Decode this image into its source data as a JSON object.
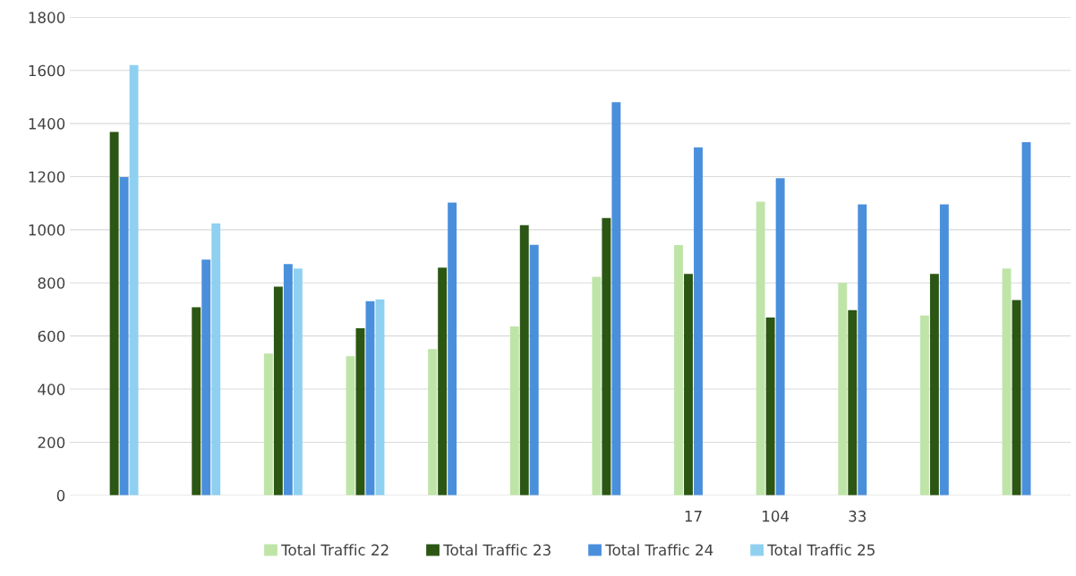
{
  "chart_data": {
    "type": "bar",
    "categories": [
      null,
      null,
      null,
      null,
      null,
      null,
      null,
      "17",
      "104",
      "33",
      null,
      null
    ],
    "series": [
      {
        "name": "Total Traffic 22",
        "color": "#bfe4a8",
        "values": [
          null,
          null,
          534,
          524,
          551,
          636,
          823,
          942,
          1106,
          800,
          677,
          854
        ]
      },
      {
        "name": "Total Traffic 23",
        "color": "#2b5614",
        "values": [
          1368,
          708,
          786,
          629,
          857,
          1017,
          1044,
          834,
          670,
          697,
          834,
          735
        ]
      },
      {
        "name": "Total Traffic 24",
        "color": "#4a8fdb",
        "values": [
          1198,
          888,
          871,
          731,
          1102,
          943,
          1480,
          1310,
          1194,
          1096,
          1096,
          1330
        ]
      },
      {
        "name": "Total Traffic 25",
        "color": "#8fd0f0",
        "values": [
          1620,
          1024,
          854,
          738,
          null,
          null,
          null,
          null,
          null,
          null,
          null,
          null
        ]
      }
    ],
    "ylim": [
      0,
      1800
    ],
    "yticks": [
      0,
      200,
      400,
      600,
      800,
      1000,
      1200,
      1400,
      1600,
      1800
    ],
    "grid": "y",
    "legend": "bottom"
  }
}
